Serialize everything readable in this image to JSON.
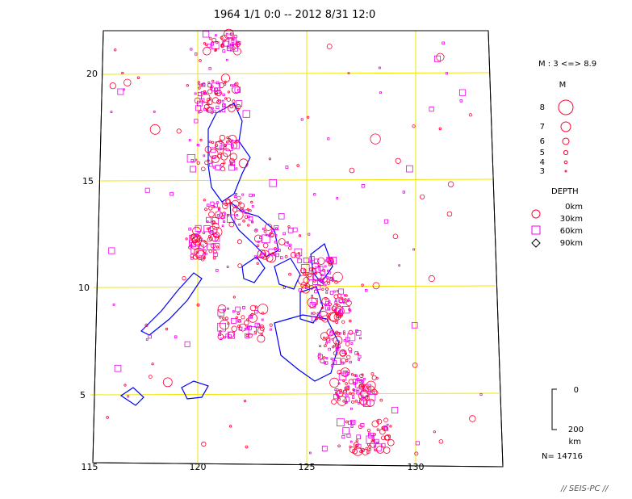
{
  "title": "1964 1/1 0:0 -- 2012 8/31 12:0",
  "map": {
    "lon_ticks": [
      "115",
      "120",
      "125",
      "130"
    ],
    "lat_ticks": [
      "5",
      "10",
      "15",
      "20"
    ],
    "grid_color": "#f2e600",
    "coast_color": "#0000ff",
    "event_color": "#ff0033",
    "deep_event_color": "#ee00ee"
  },
  "legend": {
    "mag_range": "M : 3 <=> 8.9",
    "mag_header": "M",
    "mag_labels": [
      "8",
      "7",
      "6",
      "5",
      "4",
      "3"
    ],
    "depth_header": "DEPTH",
    "depth_labels": [
      "0km",
      "30km",
      "60km",
      "90km"
    ],
    "scale_top": "0",
    "scale_bottom": "200",
    "scale_unit": "km",
    "count": "N= 14716"
  },
  "credit": "// SEIS-PC //"
}
